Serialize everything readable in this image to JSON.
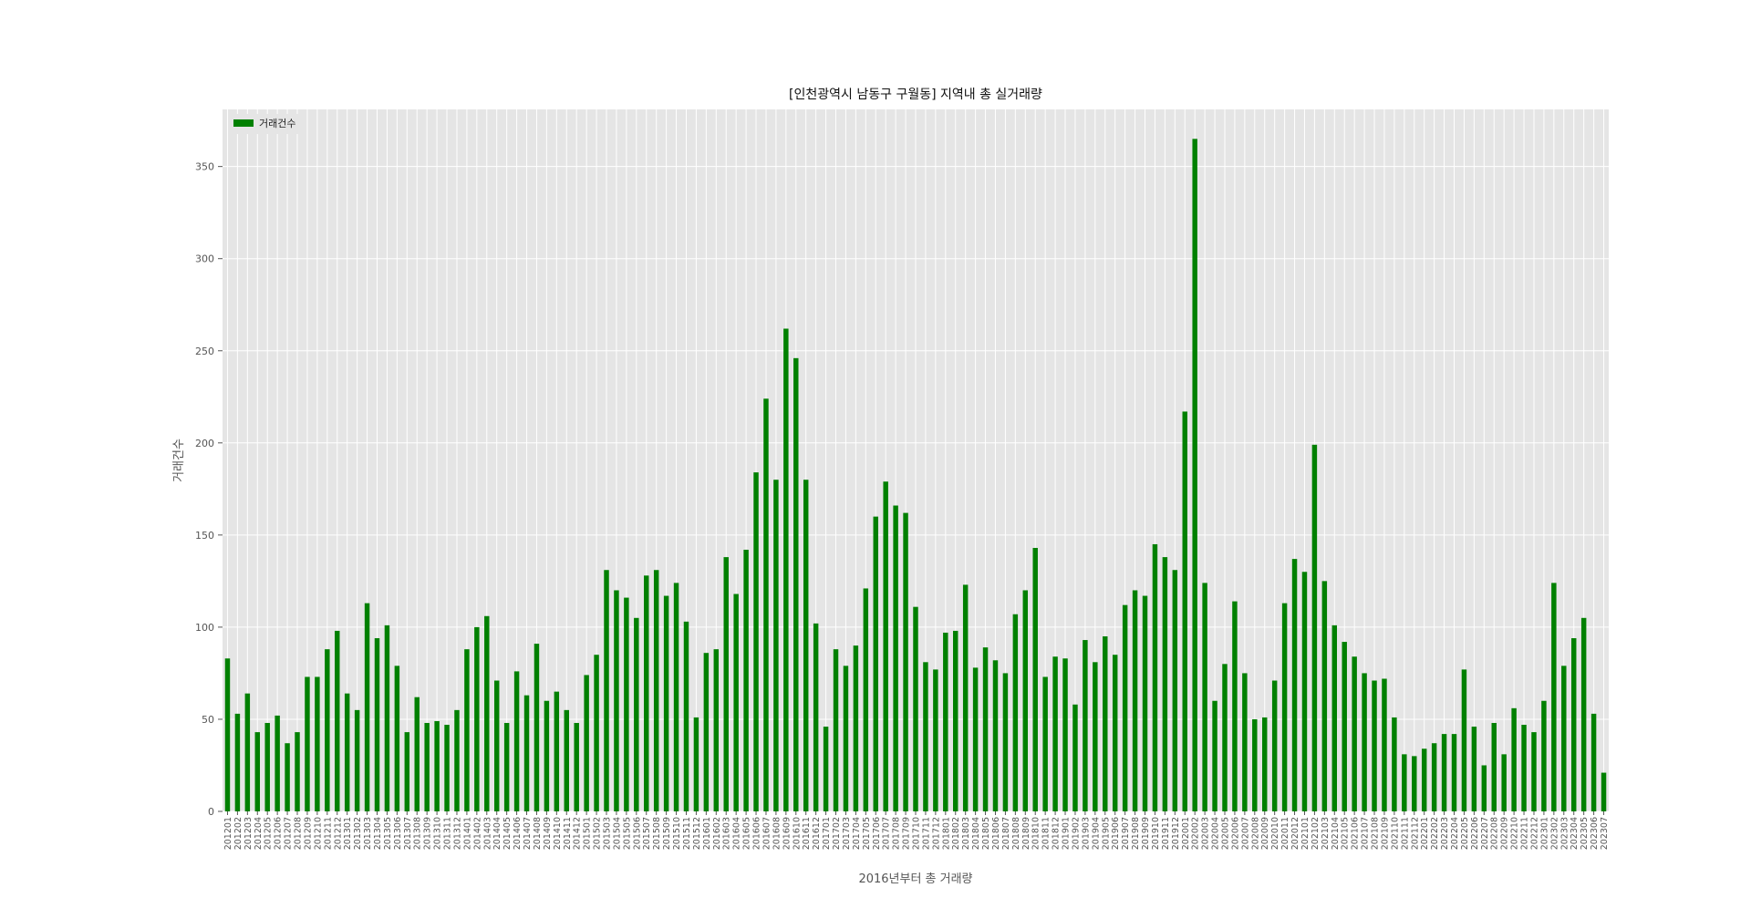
{
  "chart_data": {
    "type": "bar",
    "title": "[인천광역시 남동구 구월동] 지역내 총 실거래량",
    "xlabel": "2016년부터 총 거래량",
    "ylabel": "거래건수",
    "legend": {
      "position": "top-left",
      "entries": [
        "거래건수"
      ]
    },
    "grid": true,
    "ylim": [
      0,
      381
    ],
    "yticks": [
      0,
      50,
      100,
      150,
      200,
      250,
      300,
      350
    ],
    "colors": {
      "bar": "#008000",
      "plot_background": "#e5e5e5",
      "grid": "#ffffff",
      "text": "#555555"
    },
    "categories": [
      "201201",
      "201202",
      "201203",
      "201204",
      "201205",
      "201206",
      "201207",
      "201208",
      "201209",
      "201210",
      "201211",
      "201212",
      "201301",
      "201302",
      "201303",
      "201304",
      "201305",
      "201306",
      "201307",
      "201308",
      "201309",
      "201310",
      "201311",
      "201312",
      "201401",
      "201402",
      "201403",
      "201404",
      "201405",
      "201406",
      "201407",
      "201408",
      "201409",
      "201410",
      "201411",
      "201412",
      "201501",
      "201502",
      "201503",
      "201504",
      "201505",
      "201506",
      "201507",
      "201508",
      "201509",
      "201510",
      "201511",
      "201512",
      "201601",
      "201602",
      "201603",
      "201604",
      "201605",
      "201606",
      "201607",
      "201608",
      "201609",
      "201610",
      "201611",
      "201612",
      "201701",
      "201702",
      "201703",
      "201704",
      "201705",
      "201706",
      "201707",
      "201708",
      "201709",
      "201710",
      "201711",
      "201712",
      "201801",
      "201802",
      "201803",
      "201804",
      "201805",
      "201806",
      "201807",
      "201808",
      "201809",
      "201810",
      "201811",
      "201812",
      "201901",
      "201902",
      "201903",
      "201904",
      "201905",
      "201906",
      "201907",
      "201908",
      "201909",
      "201910",
      "201911",
      "201912",
      "202001",
      "202002",
      "202003",
      "202004",
      "202005",
      "202006",
      "202007",
      "202008",
      "202009",
      "202010",
      "202011",
      "202012",
      "202101",
      "202102",
      "202103",
      "202104",
      "202105",
      "202106",
      "202107",
      "202108",
      "202109",
      "202110",
      "202111",
      "202112",
      "202201",
      "202202",
      "202203",
      "202204",
      "202205",
      "202206",
      "202207",
      "202208",
      "202209",
      "202210",
      "202211",
      "202212",
      "202301",
      "202302",
      "202303",
      "202304",
      "202305",
      "202306",
      "202307"
    ],
    "series": [
      {
        "name": "거래건수",
        "values": [
          83,
          53,
          64,
          43,
          48,
          52,
          37,
          43,
          73,
          73,
          88,
          98,
          64,
          55,
          113,
          94,
          101,
          79,
          43,
          62,
          48,
          49,
          47,
          55,
          88,
          100,
          106,
          71,
          48,
          76,
          63,
          91,
          60,
          65,
          55,
          48,
          74,
          85,
          131,
          120,
          116,
          105,
          128,
          131,
          117,
          124,
          103,
          51,
          86,
          88,
          138,
          118,
          142,
          184,
          224,
          180,
          262,
          246,
          180,
          102,
          46,
          88,
          79,
          90,
          121,
          160,
          179,
          166,
          162,
          111,
          81,
          77,
          97,
          98,
          123,
          78,
          89,
          82,
          75,
          107,
          120,
          143,
          73,
          84,
          83,
          58,
          93,
          81,
          95,
          85,
          112,
          120,
          117,
          145,
          138,
          131,
          217,
          365,
          124,
          60,
          80,
          114,
          75,
          50,
          51,
          71,
          113,
          137,
          130,
          199,
          125,
          101,
          92,
          84,
          75,
          71,
          72,
          51,
          31,
          30,
          34,
          37,
          42,
          42,
          77,
          46,
          25,
          48,
          31,
          56,
          47,
          43,
          60,
          124,
          79,
          94,
          105,
          53,
          21
        ]
      }
    ]
  }
}
